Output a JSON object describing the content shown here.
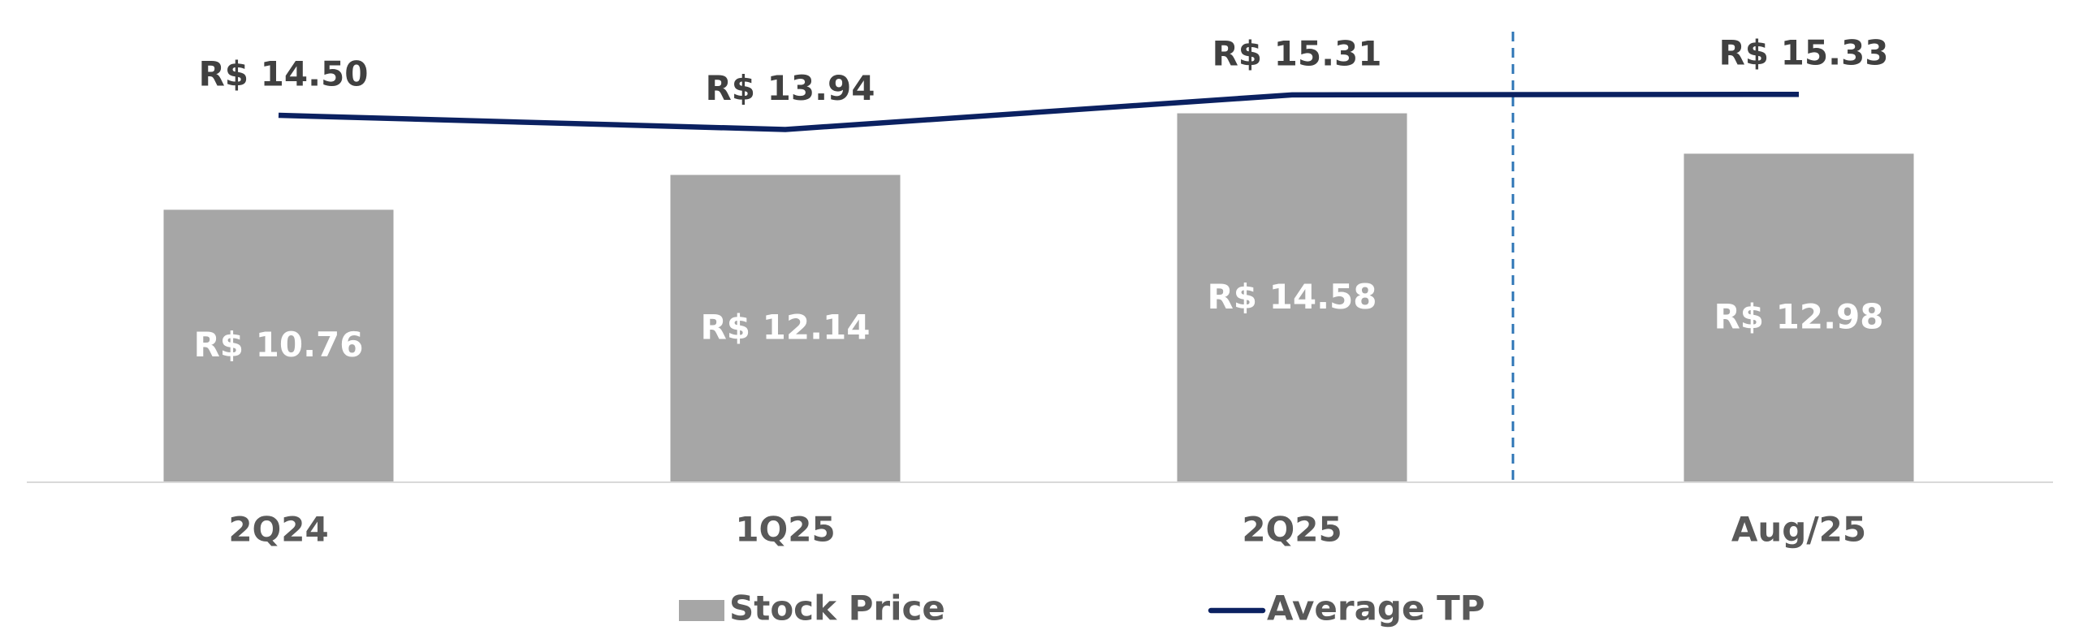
{
  "chart_data": {
    "type": "bar",
    "categories": [
      "2Q24",
      "1Q25",
      "2Q25",
      "Aug/25"
    ],
    "series": [
      {
        "name": "Stock Price",
        "type": "bar",
        "color": "#a6a6a6",
        "values": [
          10.76,
          12.14,
          14.58,
          12.98
        ],
        "value_labels": [
          "R$ 10.76",
          "R$ 12.14",
          "R$ 14.58",
          "R$ 12.98"
        ]
      },
      {
        "name": "Average TP",
        "type": "line",
        "color": "#0b2161",
        "values": [
          14.5,
          13.94,
          15.31,
          15.33
        ],
        "value_labels": [
          "R$ 14.50",
          "R$ 13.94",
          "R$ 15.31",
          "R$ 15.33"
        ]
      }
    ]
  }
}
